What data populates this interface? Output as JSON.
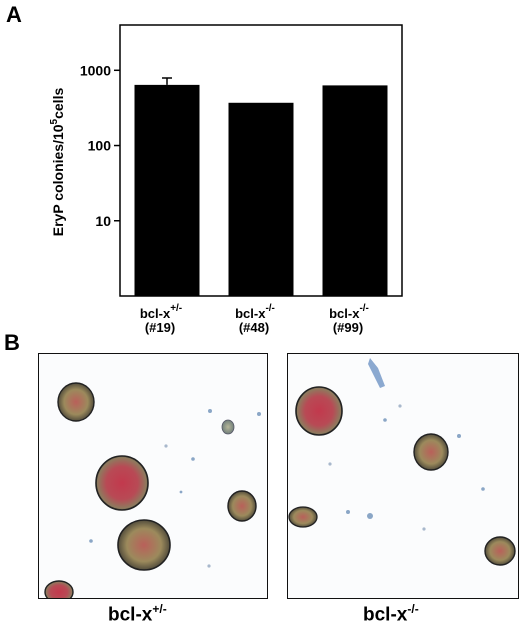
{
  "panels": {
    "a_label": "A",
    "b_label": "B"
  },
  "chart_data": {
    "type": "bar",
    "yscale": "log",
    "ylim": [
      1,
      4000
    ],
    "ylabel_main": "EryP colonies/10",
    "ylabel_exp": "5",
    "ylabel_tail": "cells",
    "ytick_values": [
      10,
      100,
      1000
    ],
    "ytick_labels": [
      "10",
      "100",
      "1000"
    ],
    "categories": [
      {
        "base": "bcl-x",
        "sup": "+/-",
        "clone": "(#19)"
      },
      {
        "base": "bcl-x",
        "sup": "-/-",
        "clone": "(#48)"
      },
      {
        "base": "bcl-x",
        "sup": "-/-",
        "clone": "(#99)"
      }
    ],
    "values": [
      640,
      370,
      630
    ],
    "error_upper": [
      790,
      null,
      null
    ],
    "bar_color": "#000000"
  },
  "micrographs": [
    {
      "genotype_base": "bcl-x",
      "genotype_sup": "+/-"
    },
    {
      "genotype_base": "bcl-x",
      "genotype_sup": "-/-"
    }
  ]
}
